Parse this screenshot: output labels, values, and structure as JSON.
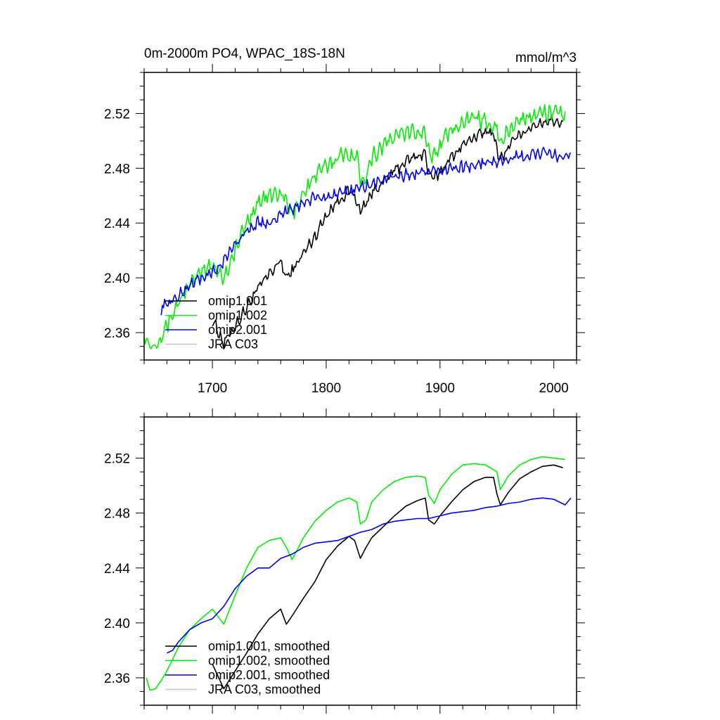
{
  "chart_data": [
    {
      "type": "line",
      "title": "0m-2000m PO4, WPAC_18S-18N",
      "units": "mmol/m^3",
      "xlim": [
        1640,
        2020
      ],
      "ylim": [
        2.34,
        2.55
      ],
      "xticks": [
        1700,
        1800,
        1900,
        2000
      ],
      "yticks": [
        2.36,
        2.4,
        2.44,
        2.48,
        2.52
      ],
      "xtick_labels": [
        "1700",
        "1800",
        "1900",
        "2000"
      ],
      "ytick_labels": [
        "2.36",
        "2.40",
        "2.44",
        "2.48",
        "2.52"
      ],
      "legend_position": "bottom-left",
      "series": [
        {
          "name": "omip1.001",
          "color": "#000000",
          "noise": 0.003,
          "x": [
            1700,
            1710,
            1720,
            1730,
            1740,
            1750,
            1760,
            1765,
            1770,
            1780,
            1790,
            1800,
            1810,
            1820,
            1825,
            1830,
            1835,
            1840,
            1850,
            1860,
            1870,
            1880,
            1887,
            1890,
            1895,
            1900,
            1910,
            1920,
            1930,
            1940,
            1947,
            1950,
            1953,
            1960,
            1970,
            1980,
            1990,
            2000,
            2008
          ],
          "y": [
            2.37,
            2.352,
            2.365,
            2.378,
            2.392,
            2.403,
            2.412,
            2.4,
            2.405,
            2.418,
            2.43,
            2.446,
            2.456,
            2.463,
            2.46,
            2.448,
            2.455,
            2.462,
            2.47,
            2.478,
            2.485,
            2.489,
            2.491,
            2.475,
            2.472,
            2.478,
            2.488,
            2.497,
            2.503,
            2.506,
            2.506,
            2.494,
            2.486,
            2.495,
            2.505,
            2.51,
            2.514,
            2.515,
            2.513
          ]
        },
        {
          "name": "omip1.002",
          "color": "#00ee00",
          "noise": 0.004,
          "x": [
            1640,
            1645,
            1650,
            1655,
            1660,
            1670,
            1680,
            1690,
            1700,
            1710,
            1720,
            1730,
            1740,
            1750,
            1760,
            1765,
            1770,
            1780,
            1790,
            1800,
            1810,
            1820,
            1827,
            1830,
            1835,
            1840,
            1850,
            1860,
            1870,
            1880,
            1887,
            1890,
            1895,
            1900,
            1910,
            1920,
            1930,
            1940,
            1950,
            1953,
            1960,
            1970,
            1980,
            1990,
            2000,
            2010
          ],
          "y": [
            2.36,
            2.35,
            2.352,
            2.358,
            2.365,
            2.382,
            2.395,
            2.403,
            2.41,
            2.4,
            2.42,
            2.44,
            2.455,
            2.46,
            2.462,
            2.455,
            2.446,
            2.462,
            2.474,
            2.482,
            2.488,
            2.491,
            2.488,
            2.472,
            2.475,
            2.488,
            2.497,
            2.503,
            2.506,
            2.507,
            2.506,
            2.493,
            2.488,
            2.497,
            2.508,
            2.515,
            2.516,
            2.515,
            2.51,
            2.497,
            2.507,
            2.515,
            2.519,
            2.521,
            2.52,
            2.519
          ]
        },
        {
          "name": "omip2.001",
          "color": "#0000ee",
          "noise": 0.003,
          "x": [
            1655,
            1660,
            1670,
            1680,
            1690,
            1700,
            1710,
            1720,
            1730,
            1740,
            1750,
            1760,
            1770,
            1780,
            1790,
            1800,
            1810,
            1820,
            1830,
            1840,
            1850,
            1860,
            1870,
            1880,
            1890,
            1900,
            1910,
            1920,
            1930,
            1940,
            1950,
            1960,
            1970,
            1980,
            1990,
            2000,
            2010,
            2015
          ],
          "y": [
            2.378,
            2.381,
            2.386,
            2.395,
            2.4,
            2.403,
            2.412,
            2.425,
            2.434,
            2.44,
            2.44,
            2.447,
            2.45,
            2.455,
            2.458,
            2.459,
            2.46,
            2.463,
            2.466,
            2.468,
            2.472,
            2.474,
            2.475,
            2.476,
            2.476,
            2.478,
            2.48,
            2.481,
            2.482,
            2.484,
            2.485,
            2.487,
            2.488,
            2.49,
            2.491,
            2.49,
            2.486,
            2.491
          ]
        },
        {
          "name": "JRA C03",
          "color": "#c8c8c8",
          "x": [],
          "y": []
        }
      ]
    },
    {
      "type": "line",
      "title": "",
      "units": "",
      "xlim": [
        1640,
        2020
      ],
      "ylim": [
        2.34,
        2.55
      ],
      "xticks": [
        1700,
        1800,
        1900,
        2000
      ],
      "yticks": [
        2.36,
        2.4,
        2.44,
        2.48,
        2.52
      ],
      "xtick_labels": [],
      "ytick_labels": [
        "2.36",
        "2.40",
        "2.44",
        "2.48",
        "2.52"
      ],
      "legend_position": "bottom-left",
      "series": [
        {
          "name": "omip1.001, smoothed",
          "color": "#000000",
          "x": [
            1700,
            1710,
            1720,
            1730,
            1740,
            1750,
            1760,
            1765,
            1770,
            1780,
            1790,
            1800,
            1810,
            1820,
            1825,
            1830,
            1835,
            1840,
            1850,
            1860,
            1870,
            1880,
            1887,
            1890,
            1895,
            1900,
            1910,
            1920,
            1930,
            1940,
            1947,
            1950,
            1953,
            1960,
            1970,
            1980,
            1990,
            2000,
            2008
          ],
          "y": [
            2.37,
            2.352,
            2.365,
            2.378,
            2.392,
            2.403,
            2.41,
            2.399,
            2.405,
            2.418,
            2.43,
            2.446,
            2.456,
            2.463,
            2.46,
            2.447,
            2.455,
            2.462,
            2.47,
            2.478,
            2.485,
            2.489,
            2.491,
            2.475,
            2.472,
            2.478,
            2.488,
            2.497,
            2.503,
            2.506,
            2.506,
            2.494,
            2.486,
            2.495,
            2.505,
            2.51,
            2.514,
            2.515,
            2.513
          ]
        },
        {
          "name": "omip1.002, smoothed",
          "color": "#00ee00",
          "x": [
            1642,
            1645,
            1650,
            1655,
            1660,
            1670,
            1680,
            1690,
            1700,
            1710,
            1720,
            1730,
            1740,
            1750,
            1760,
            1765,
            1770,
            1780,
            1790,
            1800,
            1810,
            1820,
            1827,
            1830,
            1835,
            1840,
            1850,
            1860,
            1870,
            1880,
            1887,
            1890,
            1895,
            1900,
            1910,
            1920,
            1930,
            1940,
            1950,
            1953,
            1960,
            1970,
            1980,
            1990,
            2000,
            2010
          ],
          "y": [
            2.36,
            2.351,
            2.352,
            2.358,
            2.365,
            2.382,
            2.395,
            2.403,
            2.41,
            2.399,
            2.42,
            2.44,
            2.455,
            2.46,
            2.462,
            2.455,
            2.446,
            2.462,
            2.474,
            2.482,
            2.488,
            2.491,
            2.488,
            2.472,
            2.475,
            2.488,
            2.497,
            2.503,
            2.506,
            2.507,
            2.506,
            2.493,
            2.487,
            2.497,
            2.508,
            2.515,
            2.516,
            2.515,
            2.51,
            2.497,
            2.507,
            2.515,
            2.519,
            2.521,
            2.52,
            2.519
          ]
        },
        {
          "name": "omip2.001, smoothed",
          "color": "#0000ee",
          "x": [
            1660,
            1665,
            1670,
            1680,
            1690,
            1700,
            1710,
            1720,
            1730,
            1740,
            1750,
            1760,
            1770,
            1780,
            1790,
            1800,
            1810,
            1820,
            1830,
            1840,
            1850,
            1860,
            1870,
            1880,
            1890,
            1900,
            1910,
            1920,
            1930,
            1940,
            1950,
            1960,
            1970,
            1980,
            1990,
            2000,
            2010,
            2015
          ],
          "y": [
            2.378,
            2.38,
            2.386,
            2.395,
            2.4,
            2.403,
            2.412,
            2.425,
            2.434,
            2.44,
            2.44,
            2.447,
            2.45,
            2.455,
            2.458,
            2.459,
            2.46,
            2.463,
            2.466,
            2.468,
            2.472,
            2.474,
            2.475,
            2.476,
            2.476,
            2.478,
            2.48,
            2.481,
            2.482,
            2.484,
            2.485,
            2.487,
            2.488,
            2.49,
            2.491,
            2.49,
            2.486,
            2.491
          ]
        },
        {
          "name": "JRA C03, smoothed",
          "color": "#c8c8c8",
          "x": [],
          "y": []
        }
      ]
    }
  ]
}
